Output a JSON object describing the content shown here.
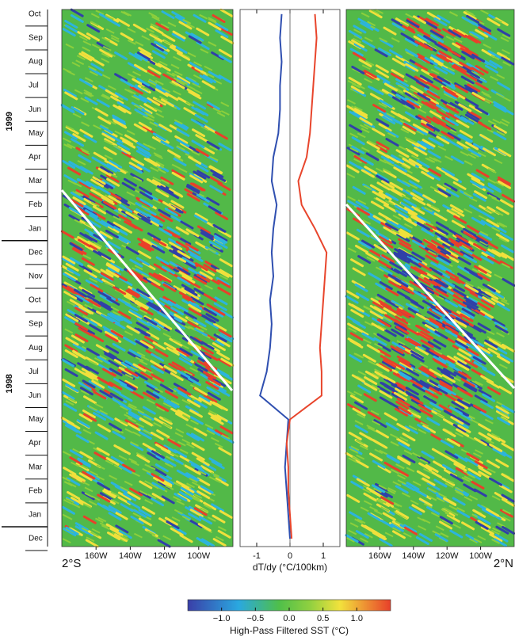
{
  "chart_data": {
    "type": "line",
    "categories": [
      "Dec",
      "Jan",
      "Feb",
      "Mar",
      "Apr",
      "May",
      "Jun",
      "Jul",
      "Aug",
      "Sep",
      "Oct",
      "Nov",
      "Dec",
      "Jan",
      "Feb",
      "Mar",
      "Apr",
      "May",
      "Jun",
      "Jul",
      "Aug",
      "Sep",
      "Oct"
    ],
    "years": [
      "1998",
      "1999"
    ],
    "series": [
      {
        "color": "#2f4fb0",
        "values": [
          0,
          -0.05,
          -0.1,
          -0.15,
          -0.1,
          -0.05,
          -0.9,
          -0.7,
          -0.6,
          -0.55,
          -0.6,
          -0.5,
          -0.55,
          -0.5,
          -0.4,
          -0.55,
          -0.5,
          -0.35,
          -0.3,
          -0.3,
          -0.25,
          -0.3,
          -0.25
        ]
      },
      {
        "color": "#e8452c",
        "values": [
          0.05,
          0,
          -0.05,
          -0.05,
          -0.1,
          0,
          0.95,
          0.95,
          0.9,
          0.95,
          1.0,
          1.05,
          1.1,
          0.75,
          0.35,
          0.25,
          0.5,
          0.6,
          0.65,
          0.7,
          0.75,
          0.8,
          0.75
        ]
      }
    ],
    "xlabel": "dT/dy (°C/100km)",
    "xlim": [
      -1.5,
      1.5
    ],
    "xticks": [
      -1,
      0,
      1
    ],
    "panels": [
      {
        "label": "2°S",
        "xlim": [
          -180,
          -80
        ],
        "xticks": [
          {
            "value": -160,
            "label": "160W"
          },
          {
            "value": -140,
            "label": "140W"
          },
          {
            "value": -120,
            "label": "120W"
          },
          {
            "value": -100,
            "label": "100W"
          }
        ]
      },
      {
        "label": "2°N",
        "xlim": [
          -180,
          -80
        ],
        "xticks": [
          {
            "value": -160,
            "label": "160W"
          },
          {
            "value": -140,
            "label": "140W"
          },
          {
            "value": -120,
            "label": "120W"
          },
          {
            "value": -100,
            "label": "100W"
          }
        ]
      }
    ],
    "colorbar": {
      "label": "High-Pass Filtered SST (°C)",
      "clim": [
        -1.5,
        1.5
      ],
      "ticks": [
        {
          "value": -1,
          "label": "−1.0"
        },
        {
          "value": -0.5,
          "label": "−0.5"
        },
        {
          "value": 0,
          "label": "0.0"
        },
        0.5,
        {
          "value": 1,
          "label": "1.0"
        }
      ]
    }
  }
}
